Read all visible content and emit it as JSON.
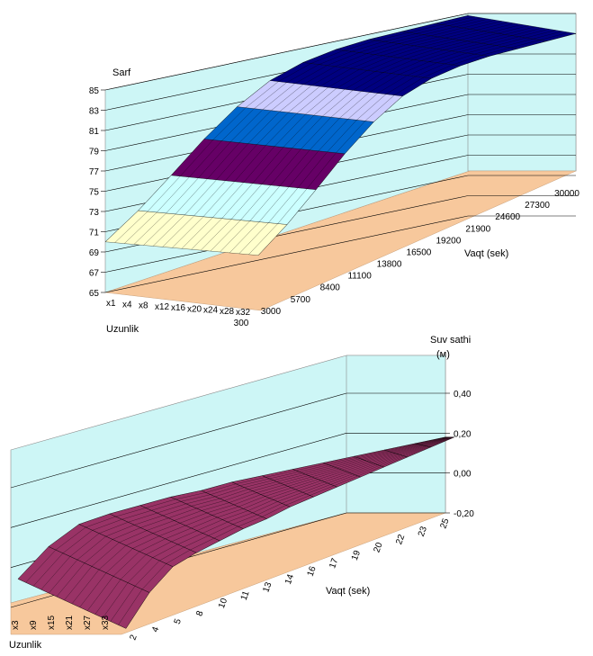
{
  "chart_data": [
    {
      "type": "surface",
      "ylabel": "Sarf",
      "xlabel": "Uzunlik",
      "zlabel": "Vaqt (sek)",
      "ylim": [
        65,
        85
      ],
      "y_ticks": [
        "65",
        "67",
        "69",
        "71",
        "73",
        "75",
        "77",
        "79",
        "81",
        "83",
        "85"
      ],
      "x_ticks": [
        "x1",
        "x4",
        "x8",
        "x12",
        "x16",
        "x20",
        "x24",
        "x28",
        "x32"
      ],
      "z_ticks": [
        "300",
        "3000",
        "5700",
        "8400",
        "11100",
        "13800",
        "16500",
        "19200",
        "21900",
        "24600",
        "27300",
        "30000"
      ],
      "bands": [
        {
          "range": "69-71",
          "color": "#ffffcc"
        },
        {
          "range": "71-73",
          "color": "#ffffcc"
        },
        {
          "range": "73-75",
          "color": "#ccffff"
        },
        {
          "range": "75-77",
          "color": "#660066"
        },
        {
          "range": "77-79",
          "color": "#ff8080"
        },
        {
          "range": "79-81",
          "color": "#0066cc"
        },
        {
          "range": "81-83",
          "color": "#ccccff"
        },
        {
          "range": "83-85",
          "color": "#000080"
        }
      ],
      "series": [
        {
          "values": [
            70.0,
            72.4,
            75.2,
            78.1,
            80.6,
            82.5,
            83.6,
            84.2,
            84.5,
            84.6,
            84.7,
            84.8
          ]
        }
      ]
    },
    {
      "type": "surface",
      "ylabel": "Suv sathi",
      "yunit": "(м)",
      "xlabel": "Uzunlik",
      "zlabel": "Vaqt (sek)",
      "ylim": [
        -0.2,
        0.4
      ],
      "y_ticks": [
        "-0,20",
        "0,00",
        "0,20",
        "0,40"
      ],
      "x_ticks": [
        "x3",
        "x9",
        "x15",
        "x21",
        "x27",
        "x33"
      ],
      "z_ticks": [
        "2",
        "4",
        "5",
        "8",
        "10",
        "11",
        "13",
        "14",
        "16",
        "17",
        "19",
        "20",
        "22",
        "23",
        "25"
      ],
      "bands": [
        {
          "range": "-0.2-0.4",
          "color": "#993366"
        },
        {
          "range": "low",
          "color": "#ffffcc"
        }
      ],
      "series": [
        {
          "values": [
            -0.08,
            0.05,
            0.13,
            0.15,
            0.16,
            0.17,
            0.17,
            0.18,
            0.18,
            0.18,
            0.18,
            0.18,
            0.18,
            0.18,
            0.18
          ]
        }
      ]
    }
  ]
}
